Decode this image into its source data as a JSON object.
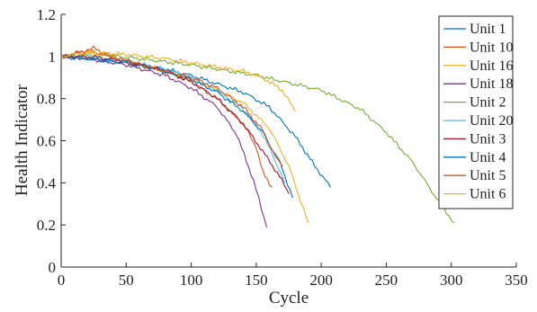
{
  "chart_data": {
    "type": "line",
    "title": "",
    "xlabel": "Cycle",
    "ylabel": "Health Indicator",
    "xlim": [
      0,
      350
    ],
    "ylim": [
      0,
      1.2
    ],
    "xticks": [
      0,
      50,
      100,
      150,
      200,
      250,
      300,
      350
    ],
    "yticks": [
      0,
      0.2,
      0.4,
      0.6,
      0.8,
      1,
      1.2
    ],
    "xtick_labels": [
      "0",
      "50",
      "100",
      "150",
      "200",
      "250",
      "300",
      "350"
    ],
    "ytick_labels": [
      "0",
      "0.2",
      "0.4",
      "0.6",
      "0.8",
      "1",
      "1.2"
    ],
    "grid": false,
    "legend_position": "top-right",
    "series": [
      {
        "name": "Unit 1",
        "color": "#0072BD",
        "x": [
          0,
          20,
          50,
          80,
          100,
          120,
          140,
          160,
          180,
          195,
          207
        ],
        "y": [
          1.0,
          0.99,
          0.97,
          0.94,
          0.91,
          0.87,
          0.83,
          0.76,
          0.62,
          0.48,
          0.38
        ]
      },
      {
        "name": "Unit 10",
        "color": "#D95319",
        "x": [
          0,
          15,
          25,
          50,
          80,
          100,
          120,
          140,
          150,
          155,
          162
        ],
        "y": [
          1.0,
          1.02,
          1.04,
          0.97,
          0.93,
          0.88,
          0.8,
          0.68,
          0.57,
          0.45,
          0.38
        ]
      },
      {
        "name": "Unit 16",
        "color": "#EDB120",
        "x": [
          0,
          20,
          50,
          80,
          100,
          120,
          140,
          160,
          175,
          190
        ],
        "y": [
          1.0,
          1.02,
          0.98,
          0.93,
          0.89,
          0.84,
          0.78,
          0.66,
          0.48,
          0.21
        ]
      },
      {
        "name": "Unit 18",
        "color": "#7E2F8E",
        "x": [
          0,
          20,
          50,
          80,
          100,
          120,
          135,
          148,
          158
        ],
        "y": [
          1.0,
          0.99,
          0.96,
          0.91,
          0.85,
          0.76,
          0.63,
          0.41,
          0.19
        ]
      },
      {
        "name": "Unit 2",
        "color": "#77AC30",
        "x": [
          0,
          30,
          60,
          100,
          150,
          200,
          230,
          250,
          270,
          285,
          302
        ],
        "y": [
          1.0,
          1.01,
          0.99,
          0.96,
          0.91,
          0.84,
          0.75,
          0.64,
          0.5,
          0.36,
          0.21
        ]
      },
      {
        "name": "Unit 20",
        "color": "#4DBEEE",
        "x": [
          0,
          20,
          50,
          80,
          100,
          120,
          140,
          155,
          165,
          172
        ],
        "y": [
          1.0,
          1.0,
          0.98,
          0.94,
          0.9,
          0.84,
          0.75,
          0.63,
          0.5,
          0.4
        ]
      },
      {
        "name": "Unit 3",
        "color": "#A2142F",
        "x": [
          0,
          20,
          50,
          80,
          100,
          120,
          140,
          155,
          168,
          175
        ],
        "y": [
          1.0,
          1.0,
          0.98,
          0.93,
          0.88,
          0.8,
          0.68,
          0.55,
          0.43,
          0.35
        ]
      },
      {
        "name": "Unit 4",
        "color": "#0072BD",
        "x": [
          0,
          20,
          50,
          80,
          100,
          120,
          140,
          155,
          168,
          178
        ],
        "y": [
          1.0,
          0.99,
          0.97,
          0.93,
          0.89,
          0.83,
          0.74,
          0.64,
          0.5,
          0.33
        ]
      },
      {
        "name": "Unit 5",
        "color": "#D95319",
        "x": [
          0,
          20,
          50,
          80,
          100,
          120,
          140,
          155,
          165,
          170
        ],
        "y": [
          1.0,
          1.03,
          0.98,
          0.93,
          0.9,
          0.85,
          0.76,
          0.65,
          0.52,
          0.48
        ]
      },
      {
        "name": "Unit 6",
        "color": "#EDB120",
        "x": [
          0,
          20,
          50,
          80,
          100,
          120,
          140,
          155,
          170,
          180
        ],
        "y": [
          1.0,
          1.02,
          1.01,
          0.99,
          0.97,
          0.95,
          0.93,
          0.9,
          0.84,
          0.74
        ]
      }
    ]
  }
}
